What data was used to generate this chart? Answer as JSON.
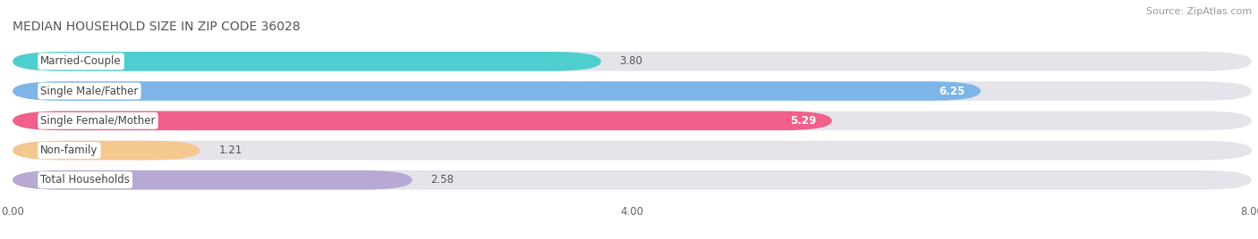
{
  "title": "MEDIAN HOUSEHOLD SIZE IN ZIP CODE 36028",
  "source": "Source: ZipAtlas.com",
  "categories": [
    "Married-Couple",
    "Single Male/Father",
    "Single Female/Mother",
    "Non-family",
    "Total Households"
  ],
  "values": [
    3.8,
    6.25,
    5.29,
    1.21,
    2.58
  ],
  "bar_colors": [
    "#4ECECE",
    "#7EB5E8",
    "#F0608A",
    "#F5C890",
    "#B8A8D4"
  ],
  "bar_bg_color": "#E4E4EA",
  "xlim_max": 8.0,
  "xticks": [
    0.0,
    4.0,
    8.0
  ],
  "xtick_labels": [
    "0.00",
    "4.00",
    "8.00"
  ],
  "label_fontsize": 8.5,
  "value_fontsize": 8.5,
  "title_fontsize": 10,
  "source_fontsize": 8,
  "background_color": "#FFFFFF",
  "title_color": "#555555",
  "value_inside_color": "#FFFFFF",
  "value_outside_color": "#555555",
  "label_text_color": "#444444",
  "inside_threshold": 4.5
}
